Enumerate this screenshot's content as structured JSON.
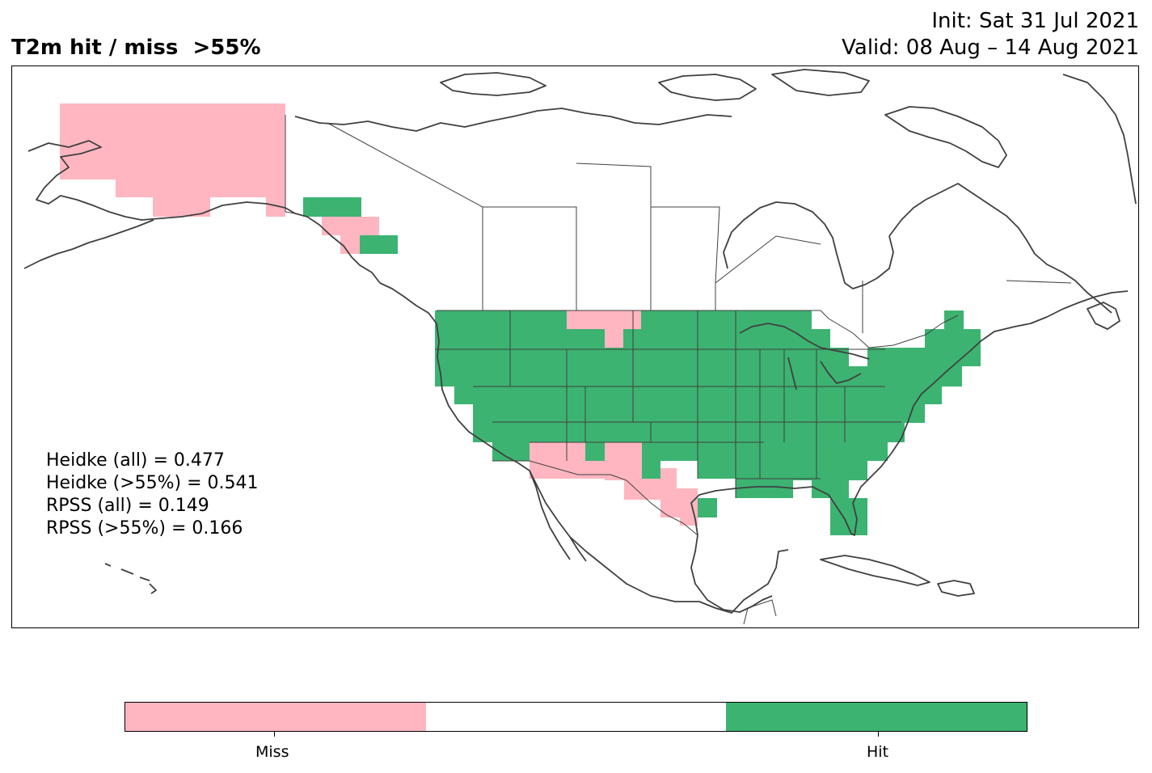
{
  "header": {
    "title": "T2m hit / miss  >55%",
    "init": "Init: Sat 31 Jul 2021",
    "valid": "Valid: 08 Aug – 14 Aug 2021"
  },
  "stats": [
    "Heidke (all) = 0.477",
    "Heidke (>55%) = 0.541",
    "RPSS (all) = 0.149",
    "RPSS (>55%) = 0.166"
  ],
  "colorbar": {
    "labels": [
      "Miss",
      "Hit"
    ],
    "colors": {
      "miss": "#ffb6c1",
      "neutral": "#ffffff",
      "hit": "#3cb371"
    }
  },
  "map": {
    "region": "North America",
    "line_color": "#404040",
    "categories": [
      "Miss",
      "Hit"
    ]
  }
}
